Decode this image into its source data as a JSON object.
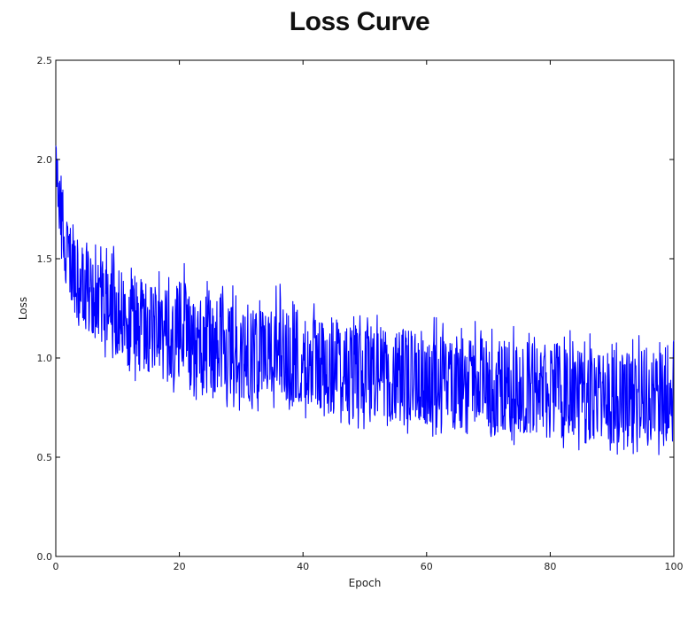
{
  "chart_data": {
    "type": "line",
    "title": "Loss Curve",
    "xlabel": "Epoch",
    "ylabel": "Loss",
    "xlim": [
      0,
      100
    ],
    "ylim": [
      0.0,
      2.5
    ],
    "xticks": [
      0,
      20,
      40,
      60,
      80,
      100
    ],
    "xtick_labels": [
      "0",
      "20",
      "40",
      "60",
      "80",
      "100"
    ],
    "yticks": [
      0.0,
      0.5,
      1.0,
      1.5,
      2.0,
      2.5
    ],
    "ytick_labels": [
      "0.0",
      "0.5",
      "1.0",
      "1.5",
      "2.0",
      "2.5"
    ],
    "grid": false,
    "legend": "none",
    "series": [
      {
        "color": "#0000ff",
        "x": [
          0,
          1,
          2,
          3,
          4,
          5,
          6,
          7,
          8,
          9,
          10,
          11,
          12,
          13,
          14,
          15,
          16,
          17,
          18,
          19,
          20,
          21,
          22,
          23,
          24,
          25,
          26,
          27,
          28,
          29,
          30,
          31,
          32,
          33,
          34,
          35,
          36,
          37,
          38,
          39,
          40,
          41,
          42,
          43,
          44,
          45,
          46,
          47,
          48,
          49,
          50,
          51,
          52,
          53,
          54,
          55,
          56,
          57,
          58,
          59,
          60,
          61,
          62,
          63,
          64,
          65,
          66,
          67,
          68,
          69,
          70,
          71,
          72,
          73,
          74,
          75,
          76,
          77,
          78,
          79,
          80,
          81,
          82,
          83,
          84,
          85,
          86,
          87,
          88,
          89,
          90,
          91,
          92,
          93,
          94,
          95,
          96,
          97,
          98,
          99,
          100
        ],
        "mean": [
          2.0,
          1.65,
          1.5,
          1.43,
          1.38,
          1.34,
          1.31,
          1.28,
          1.26,
          1.24,
          1.22,
          1.2,
          1.19,
          1.17,
          1.16,
          1.15,
          1.14,
          1.13,
          1.12,
          1.11,
          1.1,
          1.09,
          1.08,
          1.07,
          1.06,
          1.06,
          1.05,
          1.04,
          1.04,
          1.03,
          1.02,
          1.02,
          1.01,
          1.01,
          1.0,
          1.0,
          0.99,
          0.99,
          0.98,
          0.98,
          0.97,
          0.97,
          0.96,
          0.96,
          0.95,
          0.95,
          0.95,
          0.94,
          0.94,
          0.93,
          0.93,
          0.93,
          0.92,
          0.92,
          0.91,
          0.91,
          0.91,
          0.9,
          0.9,
          0.9,
          0.89,
          0.89,
          0.89,
          0.88,
          0.88,
          0.88,
          0.87,
          0.87,
          0.87,
          0.86,
          0.86,
          0.86,
          0.85,
          0.85,
          0.85,
          0.84,
          0.84,
          0.84,
          0.84,
          0.83,
          0.83,
          0.83,
          0.82,
          0.82,
          0.82,
          0.82,
          0.81,
          0.81,
          0.81,
          0.81,
          0.8,
          0.8,
          0.8,
          0.8,
          0.79,
          0.79,
          0.79,
          0.79,
          0.78,
          0.78,
          0.78
        ],
        "upper": [
          2.1,
          1.95,
          1.75,
          1.65,
          1.6,
          1.55,
          1.52,
          1.5,
          1.48,
          1.5,
          1.45,
          1.43,
          1.42,
          1.45,
          1.4,
          1.38,
          1.37,
          1.4,
          1.36,
          1.35,
          1.4,
          1.38,
          1.33,
          1.32,
          1.35,
          1.31,
          1.3,
          1.32,
          1.28,
          1.3,
          1.27,
          1.27,
          1.26,
          1.28,
          1.25,
          1.24,
          1.3,
          1.24,
          1.22,
          1.25,
          1.21,
          1.2,
          1.23,
          1.2,
          1.19,
          1.2,
          1.2,
          1.18,
          1.18,
          1.17,
          1.16,
          1.17,
          1.16,
          1.16,
          1.15,
          1.15,
          1.15,
          1.14,
          1.14,
          1.14,
          1.13,
          1.13,
          1.12,
          1.12,
          1.12,
          1.12,
          1.11,
          1.11,
          1.11,
          1.1,
          1.1,
          1.1,
          1.09,
          1.09,
          1.09,
          1.08,
          1.08,
          1.08,
          1.08,
          1.07,
          1.07,
          1.07,
          1.06,
          1.06,
          1.06,
          1.06,
          1.05,
          1.05,
          1.05,
          1.04,
          1.04,
          1.04,
          1.04,
          1.03,
          1.03,
          1.03,
          1.03,
          1.02,
          1.02,
          1.02,
          1.02
        ],
        "lower": [
          1.9,
          1.45,
          1.3,
          1.22,
          1.17,
          1.13,
          1.1,
          1.06,
          1.03,
          1.01,
          0.99,
          0.97,
          0.96,
          0.94,
          0.93,
          0.92,
          0.91,
          0.9,
          0.89,
          0.88,
          0.87,
          0.86,
          0.85,
          0.84,
          0.83,
          0.83,
          0.82,
          0.81,
          0.81,
          0.8,
          0.79,
          0.79,
          0.78,
          0.78,
          0.77,
          0.77,
          0.76,
          0.76,
          0.75,
          0.75,
          0.74,
          0.74,
          0.73,
          0.73,
          0.72,
          0.72,
          0.72,
          0.71,
          0.71,
          0.7,
          0.7,
          0.7,
          0.69,
          0.69,
          0.68,
          0.68,
          0.68,
          0.67,
          0.67,
          0.67,
          0.66,
          0.66,
          0.66,
          0.65,
          0.65,
          0.65,
          0.64,
          0.64,
          0.64,
          0.63,
          0.63,
          0.63,
          0.62,
          0.62,
          0.62,
          0.61,
          0.61,
          0.61,
          0.61,
          0.6,
          0.6,
          0.6,
          0.59,
          0.59,
          0.59,
          0.59,
          0.58,
          0.58,
          0.58,
          0.58,
          0.57,
          0.57,
          0.57,
          0.57,
          0.56,
          0.56,
          0.56,
          0.56,
          0.55,
          0.55,
          0.55
        ]
      }
    ]
  }
}
